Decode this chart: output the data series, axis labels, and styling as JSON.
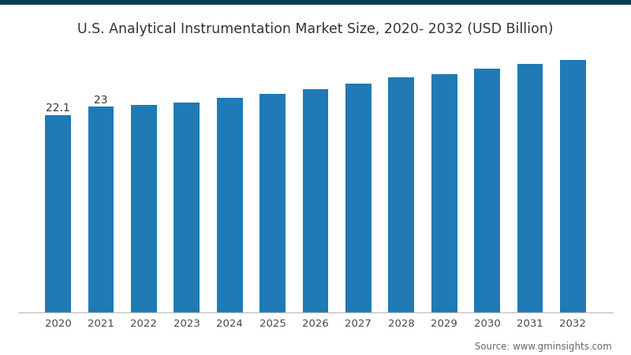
{
  "title": "U.S. Analytical Instrumentation Market Size, 2020- 2032 (USD Billion)",
  "title_fontsize": 12.5,
  "title_color": "#333333",
  "background_color": "#ffffff",
  "bar_color": "#1f7ab5",
  "border_top_color": "#0d3d52",
  "years": [
    2020,
    2021,
    2022,
    2023,
    2024,
    2025,
    2026,
    2027,
    2028,
    2029,
    2030,
    2031,
    2032
  ],
  "values": [
    22.1,
    23.0,
    23.2,
    23.5,
    24.0,
    24.5,
    25.0,
    25.6,
    26.3,
    26.7,
    27.3,
    27.8,
    28.3
  ],
  "labels": [
    "22.1",
    "23",
    "",
    "",
    "",
    "",
    "",
    "",
    "",
    "",
    "",
    "",
    ""
  ],
  "label_fontsize": 10,
  "source_text": "Source: www.gminsights.com",
  "source_fontsize": 8.5,
  "ylim": [
    0,
    29.5
  ],
  "bar_width": 0.6,
  "fig_width": 8.0,
  "fig_height": 4.5,
  "dpi": 100,
  "border_thickness": 8
}
